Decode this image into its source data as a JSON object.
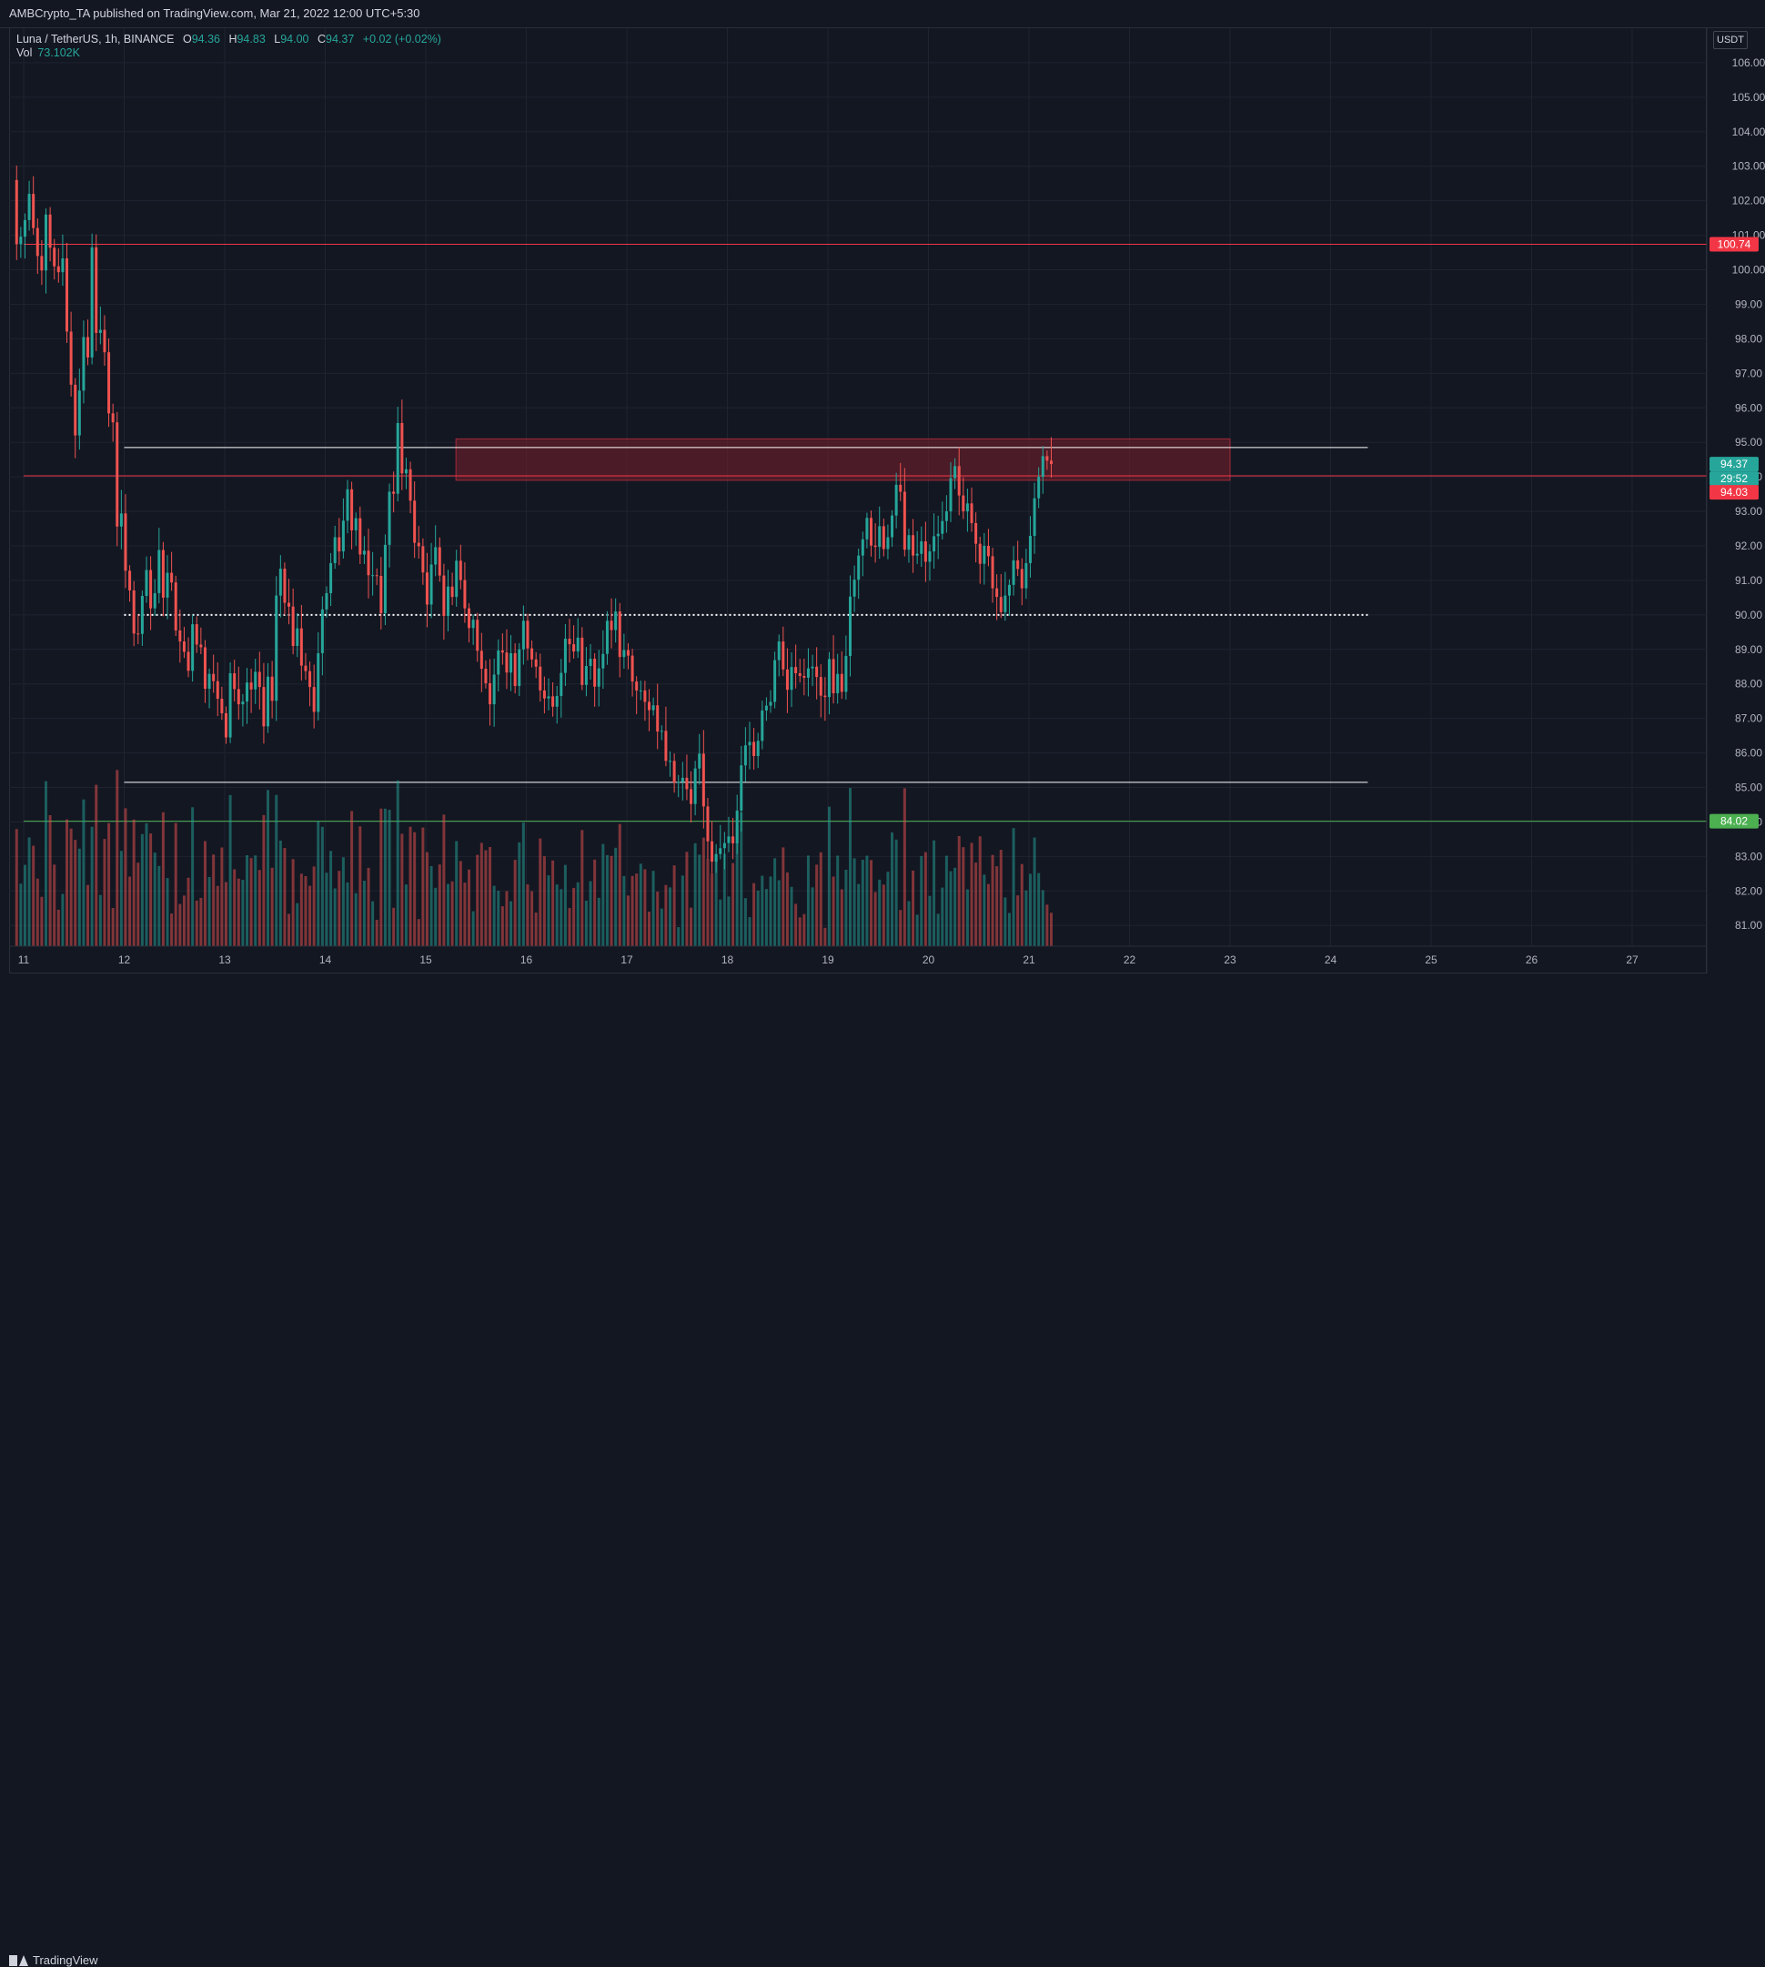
{
  "publisher": "AMBCrypto_TA published on TradingView.com, Mar 21, 2022 12:00 UTC+5:30",
  "legend": {
    "symbol": "Luna / TetherUS, 1h, BINANCE",
    "o_label": "O",
    "o": "94.36",
    "h_label": "H",
    "h": "94.83",
    "l_label": "L",
    "l": "94.00",
    "c_label": "C",
    "c": "94.37",
    "change": "+0.02 (+0.02%)",
    "vol_label": "Vol",
    "vol": "73.102K"
  },
  "currency": "USDT",
  "footer": {
    "brand": "TradingView"
  },
  "colors": {
    "up": "#26a69a",
    "down": "#ef5350",
    "grid": "#1f2330",
    "resistance": "#f23645",
    "support": "#4caf50",
    "zone": "#7a1f2b"
  },
  "chart_data": {
    "type": "candlestick",
    "y_range": [
      80.4,
      107.0
    ],
    "y_ticks": [
      "106.00",
      "105.00",
      "104.00",
      "103.00",
      "102.00",
      "101.00",
      "100.00",
      "99.00",
      "98.00",
      "97.00",
      "96.00",
      "95.00",
      "94.00",
      "93.00",
      "92.00",
      "91.00",
      "90.00",
      "89.00",
      "88.00",
      "87.00",
      "86.00",
      "85.00",
      "84.00",
      "83.00",
      "82.00",
      "81.00"
    ],
    "x_ticks": [
      "11",
      "12",
      "13",
      "14",
      "15",
      "16",
      "17",
      "18",
      "19",
      "20",
      "21",
      "22",
      "23",
      "24",
      "25",
      "26",
      "27"
    ],
    "price_labels": [
      {
        "text": "100.74",
        "value": 100.74,
        "color": "#f23645"
      },
      {
        "text": "94.37",
        "value": 94.37,
        "color": "#26a69a"
      },
      {
        "text": "29:52",
        "value": 94.37,
        "color": "#26a69a"
      },
      {
        "text": "94.03",
        "value": 94.03,
        "color": "#f23645"
      },
      {
        "text": "84.02",
        "value": 84.02,
        "color": "#4caf50"
      }
    ],
    "levels": [
      {
        "type": "resistance",
        "value": 100.74,
        "from_day": 11.0,
        "to_day": 28.0
      },
      {
        "type": "resistance",
        "value": 94.03,
        "from_day": 11.0,
        "to_day": 28.0
      },
      {
        "type": "support",
        "value": 84.02,
        "from_day": 11.0,
        "to_day": 28.0
      },
      {
        "type": "range_high",
        "value": 94.85,
        "from_day": 12.0,
        "to_day": 24.37
      },
      {
        "type": "range_low",
        "value": 85.15,
        "from_day": 12.0,
        "to_day": 24.37
      },
      {
        "type": "mid",
        "value": 90.0,
        "from_day": 12.0,
        "to_day": 24.37
      }
    ],
    "zone": {
      "from_day": 15.3,
      "to_day": 23.0,
      "low": 93.9,
      "high": 95.1
    },
    "closes": [
      100.74,
      100.96,
      101.44,
      102.2,
      101.21,
      100.4,
      99.98,
      101.6,
      100.64,
      100.1,
      99.93,
      100.33,
      98.21,
      96.67,
      95.2,
      96.5,
      98.05,
      97.46,
      100.65,
      98.17,
      98.26,
      97.61,
      95.84,
      95.58,
      92.56,
      92.94,
      91.28,
      90.71,
      89.46,
      89.45,
      90.55,
      91.3,
      90.19,
      90.63,
      91.88,
      90.5,
      91.22,
      90.94,
      89.55,
      89.23,
      88.93,
      88.38,
      89.73,
      89.14,
      89.06,
      87.86,
      88.29,
      88.08,
      87.57,
      87.15,
      86.45,
      88.31,
      87.85,
      87.41,
      87.49,
      88.04,
      87.84,
      88.35,
      87.91,
      86.77,
      88.21,
      87.51,
      90.56,
      91.34,
      90.35,
      90.24,
      89.1,
      89.61,
      88.53,
      88.37,
      87.91,
      87.19,
      88.89,
      90.16,
      90.63,
      91.5,
      92.25,
      91.84,
      92.73,
      93.64,
      92.45,
      92.8,
      91.75,
      91.86,
      91.15,
      91.15,
      91.13,
      90.05,
      92.03,
      93.57,
      93.51,
      95.56,
      94.1,
      94.22,
      93.31,
      92.09,
      91.99,
      91.23,
      90.3,
      91.46,
      91.96,
      91.14,
      89.97,
      90.82,
      90.52,
      91.57,
      91.01,
      90.19,
      89.62,
      89.86,
      88.96,
      88.44,
      88.02,
      87.41,
      88.27,
      88.97,
      88.91,
      88.33,
      88.89,
      87.94,
      89.0,
      89.83,
      89.03,
      88.71,
      88.5,
      87.81,
      87.58,
      87.64,
      87.34,
      87.65,
      88.32,
      89.31,
      89.15,
      88.94,
      89.34,
      87.97,
      88.52,
      88.73,
      87.92,
      88.45,
      88.87,
      89.83,
      89.56,
      90.1,
      88.78,
      88.98,
      88.82,
      88.07,
      87.81,
      87.81,
      87.48,
      87.24,
      87.38,
      86.62,
      86.64,
      85.77,
      85.77,
      85.14,
      85.16,
      85.28,
      84.95,
      84.52,
      85.55,
      85.98,
      84.45,
      83.44,
      82.85,
      83.07,
      83.24,
      83.39,
      83.58,
      83.38,
      84.33,
      85.64,
      86.22,
      86.32,
      85.91,
      86.35,
      87.23,
      87.37,
      87.48,
      88.69,
      89.23,
      88.42,
      87.83,
      88.49,
      88.31,
      88.23,
      88.18,
      88.45,
      88.5,
      88.2,
      87.66,
      87.62,
      88.72,
      87.73,
      88.29,
      87.77,
      88.81,
      90.53,
      91.02,
      91.72,
      92.19,
      92.81,
      92.01,
      91.97,
      92.57,
      91.91,
      92.25,
      92.88,
      93.77,
      93.57,
      91.89,
      92.31,
      91.72,
      91.77,
      92.13,
      91.54,
      91.84,
      92.28,
      92.35,
      92.72,
      93.0,
      93.96,
      94.31,
      93.46,
      93.0,
      93.23,
      92.66,
      92.06,
      91.48,
      92.0,
      91.7,
      90.77,
      90.52,
      90.08,
      90.56,
      90.87,
      91.58,
      91.33,
      90.77,
      91.5,
      92.29,
      93.38,
      94.0,
      94.6,
      94.47,
      94.37
    ],
    "volume_range": [
      0,
      1
    ]
  }
}
